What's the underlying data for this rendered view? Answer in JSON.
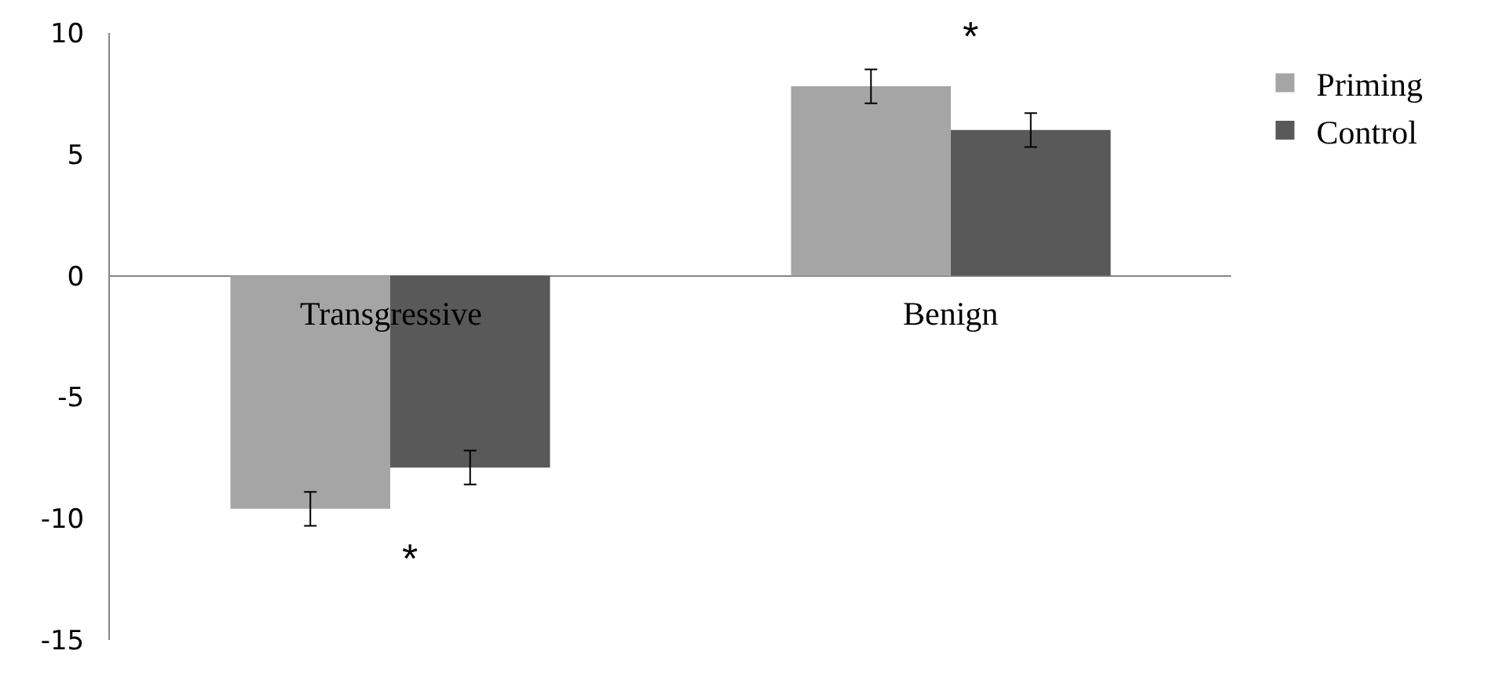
{
  "chart_data": {
    "type": "bar",
    "categories": [
      "Transgressive",
      "Benign"
    ],
    "series": [
      {
        "name": "Priming",
        "color": "#a5a5a5",
        "values": [
          -9.6,
          7.8
        ],
        "errors": [
          0.7,
          0.7
        ]
      },
      {
        "name": "Control",
        "color": "#595959",
        "values": [
          -7.9,
          6.0
        ],
        "errors": [
          0.7,
          0.7
        ]
      }
    ],
    "ylim": [
      -15,
      10
    ],
    "yticks": [
      -15,
      -10,
      -5,
      0,
      5,
      10
    ],
    "legend": "top right",
    "annotations": [
      "*",
      "*"
    ]
  }
}
